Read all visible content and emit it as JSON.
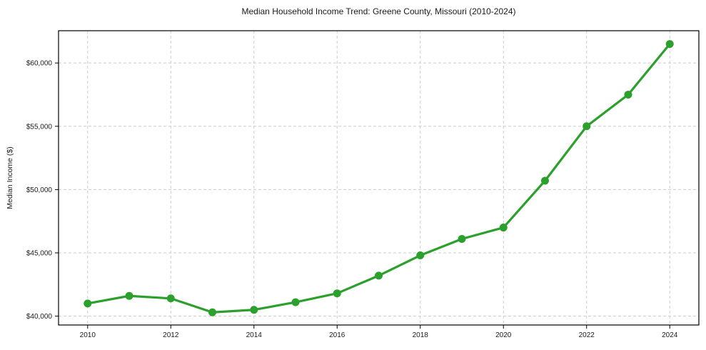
{
  "chart_data": {
    "type": "line",
    "title": "Median Household Income Trend: Greene County, Missouri (2010-2024)",
    "xlabel": "",
    "ylabel": "Median Income ($)",
    "x": [
      2010,
      2011,
      2012,
      2013,
      2014,
      2015,
      2016,
      2017,
      2018,
      2019,
      2020,
      2021,
      2022,
      2023,
      2024
    ],
    "values": [
      41000,
      41600,
      41400,
      40300,
      40500,
      41100,
      41800,
      43200,
      44800,
      46100,
      47000,
      50700,
      55000,
      57500,
      61500
    ],
    "xlim": [
      2009.3,
      2024.7
    ],
    "ylim": [
      39300,
      62550
    ],
    "xticks": {
      "values": [
        2010,
        2012,
        2014,
        2016,
        2018,
        2020,
        2022,
        2024
      ],
      "labels": [
        "2010",
        "2012",
        "2014",
        "2016",
        "2018",
        "2020",
        "2022",
        "2024"
      ]
    },
    "yticks": {
      "values": [
        40000,
        45000,
        50000,
        55000,
        60000
      ],
      "labels": [
        "$40,000",
        "$45,000",
        "$50,000",
        "$55,000",
        "$60,000"
      ]
    },
    "grid": true,
    "grid_style": "dashed",
    "legend": false,
    "marker": "circle",
    "colors": {
      "line": "#2ca02c",
      "marker": "#2ca02c",
      "grid": "#cccccc",
      "spine": "#000000",
      "text": "#1a1a1a",
      "background": "#ffffff"
    }
  }
}
